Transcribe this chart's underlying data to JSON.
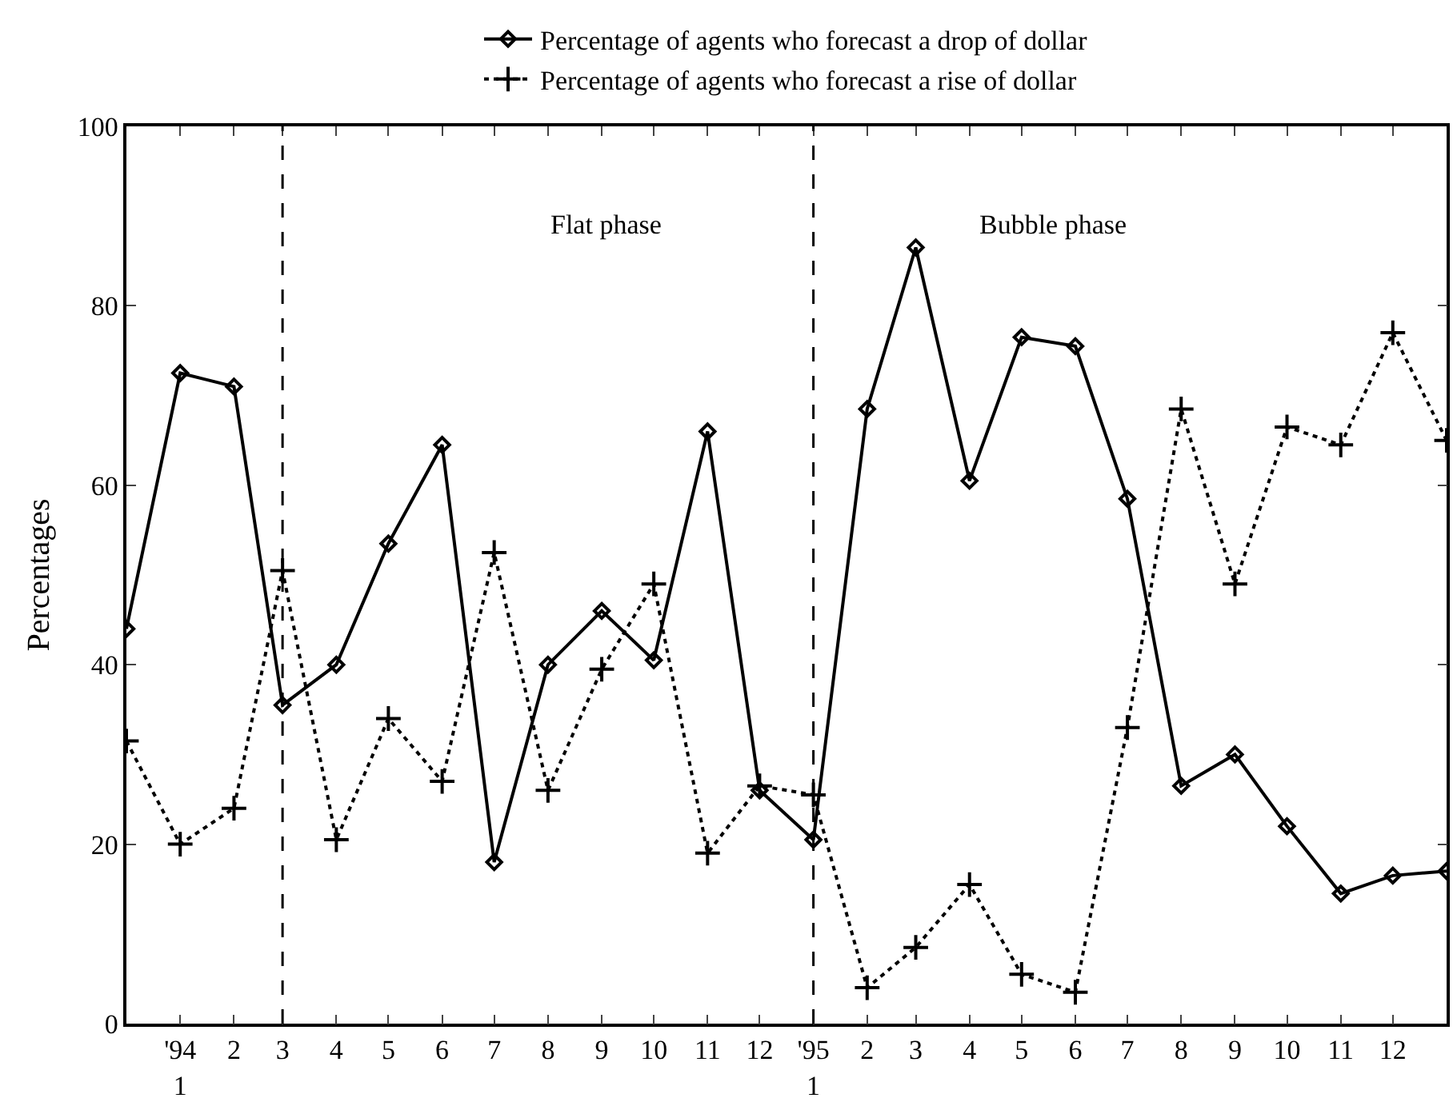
{
  "chart_data": {
    "type": "line",
    "ylabel": "Percentages",
    "x": [
      "1993-12",
      "1994-01",
      "1994-02",
      "1994-03",
      "1994-04",
      "1994-05",
      "1994-06",
      "1994-07",
      "1994-08",
      "1994-09",
      "1994-10",
      "1994-11",
      "1994-12",
      "1995-01",
      "1995-02",
      "1995-03",
      "1995-04",
      "1995-05",
      "1995-06",
      "1995-07",
      "1995-08",
      "1995-09",
      "1995-10",
      "1995-11",
      "1995-12",
      "1996-01"
    ],
    "xlim": [
      "1993-12",
      "1996-01"
    ],
    "xticks": [
      {
        "value": "1994-01",
        "label": "'94\n1"
      },
      {
        "value": "1994-02",
        "label": "2"
      },
      {
        "value": "1994-03",
        "label": "3"
      },
      {
        "value": "1994-04",
        "label": "4"
      },
      {
        "value": "1994-05",
        "label": "5"
      },
      {
        "value": "1994-06",
        "label": "6"
      },
      {
        "value": "1994-07",
        "label": "7"
      },
      {
        "value": "1994-08",
        "label": "8"
      },
      {
        "value": "1994-09",
        "label": "9"
      },
      {
        "value": "1994-10",
        "label": "10"
      },
      {
        "value": "1994-11",
        "label": "11"
      },
      {
        "value": "1994-12",
        "label": "12"
      },
      {
        "value": "1995-01",
        "label": "'95\n1"
      },
      {
        "value": "1995-02",
        "label": "2"
      },
      {
        "value": "1995-03",
        "label": "3"
      },
      {
        "value": "1995-04",
        "label": "4"
      },
      {
        "value": "1995-05",
        "label": "5"
      },
      {
        "value": "1995-06",
        "label": "6"
      },
      {
        "value": "1995-07",
        "label": "7"
      },
      {
        "value": "1995-08",
        "label": "8"
      },
      {
        "value": "1995-09",
        "label": "9"
      },
      {
        "value": "1995-10",
        "label": "10"
      },
      {
        "value": "1995-11",
        "label": "11"
      },
      {
        "value": "1995-12",
        "label": "12"
      }
    ],
    "ylim": [
      0,
      100
    ],
    "yticks": [
      0,
      20,
      40,
      60,
      80,
      100
    ],
    "grid": false,
    "legend": "top",
    "series": [
      {
        "name": "Percentage of agents who forecast a drop of dollar",
        "color": "#000000",
        "marker": "diamond",
        "line_style": "solid",
        "values": [
          44,
          72.5,
          71,
          35.5,
          40,
          53.5,
          64.5,
          18,
          40,
          46,
          40.5,
          66,
          26,
          20.5,
          68.5,
          86.5,
          60.5,
          76.5,
          75.5,
          58.5,
          26.5,
          30,
          22,
          14.5,
          16.5,
          17
        ]
      },
      {
        "name": "Percentage of agents who forecast a rise of dollar",
        "color": "#000000",
        "marker": "cross",
        "line_style": "dotted",
        "values": [
          31.5,
          20,
          24,
          50.5,
          20.5,
          34,
          27,
          52.5,
          26,
          39.5,
          49,
          19,
          26.5,
          25.5,
          4,
          8.5,
          15.5,
          5.5,
          3.5,
          33,
          68.5,
          49,
          66.5,
          64.5,
          77,
          65
        ]
      }
    ],
    "ref_lines": [
      {
        "axis": "x",
        "value": "1994-03",
        "line_style": "dashed",
        "color": "#000000"
      },
      {
        "axis": "x",
        "value": "1995-01",
        "line_style": "dashed",
        "color": "#000000"
      }
    ],
    "annotations": [
      "Flat phase",
      "Bubble phase"
    ]
  }
}
